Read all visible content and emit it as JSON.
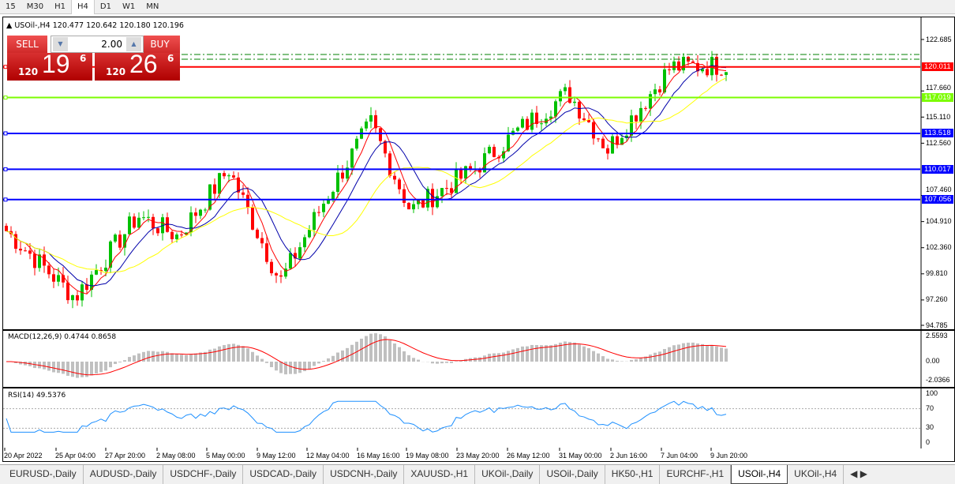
{
  "timeframes": [
    "15",
    "M30",
    "H1",
    "H4",
    "D1",
    "W1",
    "MN"
  ],
  "active_timeframe": "H4",
  "chart": {
    "symbol_title": "USOil-,H4",
    "ohlc": "120.477 120.642 120.180 120.196"
  },
  "trade_panel": {
    "sell_label": "SELL",
    "buy_label": "BUY",
    "lot": "2.00",
    "sell_small": "120",
    "sell_large": "19",
    "sell_point": "6",
    "buy_small": "120",
    "buy_large": "26",
    "buy_point": "6"
  },
  "price_axis": [
    "122.685",
    "117.660",
    "115.110",
    "112.560",
    "107.460",
    "104.910",
    "102.360",
    "99.810",
    "97.260",
    "94.785"
  ],
  "levels": [
    {
      "value": "120.011",
      "color": "#ff0000"
    },
    {
      "value": "117.019",
      "color": "#7cfc00"
    },
    {
      "value": "113.518",
      "color": "#0000ff"
    },
    {
      "value": "110.017",
      "color": "#0000ff"
    },
    {
      "value": "107.056",
      "color": "#0000ff"
    }
  ],
  "macd": {
    "label": "MACD(12,26,9) 0.4744 0.8658",
    "axis": [
      "2.5593",
      "0.00",
      "-2.0366"
    ]
  },
  "rsi": {
    "label": "RSI(14) 49.5376",
    "axis": [
      "100",
      "70",
      "30",
      "0"
    ]
  },
  "time_axis": [
    "20 Apr 2022",
    "25 Apr 04:00",
    "27 Apr 20:00",
    "2 May 08:00",
    "5 May 00:00",
    "9 May 12:00",
    "12 May 04:00",
    "16 May 16:00",
    "19 May 08:00",
    "23 May 20:00",
    "26 May 12:00",
    "31 May 00:00",
    "2 Jun 16:00",
    "7 Jun 04:00",
    "9 Jun 20:00"
  ],
  "tabs": [
    "EURUSD-,Daily",
    "AUDUSD-,Daily",
    "USDCHF-,Daily",
    "USDCAD-,Daily",
    "USDCNH-,Daily",
    "XAUUSD-,H1",
    "UKOil-,Daily",
    "USOil-,Daily",
    "HK50-,H1",
    "EURCHF-,H1",
    "USOil-,H4",
    "UKOil-,H4"
  ],
  "active_tab": "USOil-,H4",
  "colors": {
    "bull": "#00c000",
    "bear": "#ff0000",
    "ma_fast": "#ff0000",
    "ma_mid": "#0000aa",
    "ma_slow": "#ffff00",
    "rsi": "#1e90ff",
    "macd_hist": "#c0c0c0"
  },
  "chart_data": {
    "type": "candlestick",
    "approx_close_by_time_label": [
      [
        "20 Apr 2022",
        104
      ],
      [
        "25 Apr 04:00",
        97.5
      ],
      [
        "27 Apr 20:00",
        105.5
      ],
      [
        "2 May 08:00",
        103.5
      ],
      [
        "5 May 00:00",
        110
      ],
      [
        "9 May 12:00",
        99
      ],
      [
        "12 May 04:00",
        107.5
      ],
      [
        "16 May 16:00",
        114.5
      ],
      [
        "19 May 08:00",
        106
      ],
      [
        "23 May 20:00",
        110
      ],
      [
        "26 May 12:00",
        114
      ],
      [
        "31 May 00:00",
        117.5
      ],
      [
        "2 Jun 16:00",
        112
      ],
      [
        "7 Jun 04:00",
        120
      ],
      [
        "9 Jun 20:00",
        120.196
      ]
    ]
  }
}
